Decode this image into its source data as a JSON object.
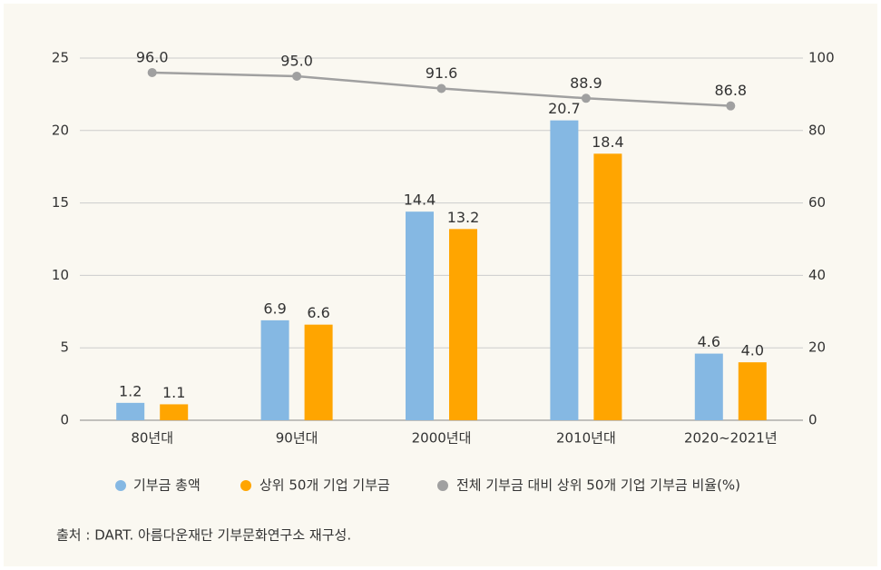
{
  "chart_data": {
    "type": "bar_line",
    "categories": [
      "80년대",
      "90년대",
      "2000년대",
      "2010년대",
      "2020~2021년"
    ],
    "series": [
      {
        "name": "기부금 총액",
        "color": "#85b8e3",
        "values": [
          1.2,
          6.9,
          14.4,
          20.7,
          4.6
        ],
        "value_labels": [
          "1.2",
          "6.9",
          "14.4",
          "20.7",
          "4.6"
        ]
      },
      {
        "name": "상위 50개 기업 기부금",
        "color": "#ffa500",
        "values": [
          1.1,
          6.6,
          13.2,
          18.4,
          4.0
        ],
        "value_labels": [
          "1.1",
          "6.6",
          "13.2",
          "18.4",
          "4.0"
        ]
      },
      {
        "name": "전체 기부금 대비 상위 50개 기업 기부금 비율(%)",
        "color": "#a0a0a0",
        "axis": "y2",
        "type": "line",
        "values": [
          96.0,
          95.0,
          91.6,
          88.9,
          86.8
        ],
        "value_labels": [
          "96.0",
          "95.0",
          "91.6",
          "88.9",
          "86.8"
        ]
      }
    ],
    "ylim": [
      0,
      25
    ],
    "yticks": [
      0,
      5,
      10,
      15,
      20,
      25
    ],
    "y2lim": [
      0,
      100
    ],
    "y2ticks": [
      0,
      20,
      40,
      60,
      80,
      100
    ],
    "grid": true,
    "legend": "bottom",
    "source": "출처 : DART. 아름다운재단 기부문화연구소 재구성."
  }
}
